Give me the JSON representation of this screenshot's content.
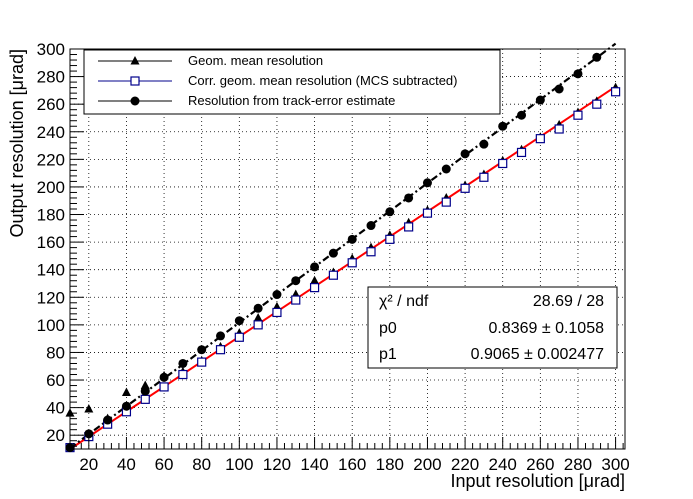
{
  "chart_data": {
    "type": "scatter",
    "xlabel": "Input resolution [μrad]",
    "ylabel": "Output resolution [μrad]",
    "xlim": [
      10,
      305
    ],
    "ylim": [
      10,
      300
    ],
    "xticks": [
      20,
      40,
      60,
      80,
      100,
      120,
      140,
      160,
      180,
      200,
      220,
      240,
      260,
      280,
      300
    ],
    "yticks": [
      20,
      40,
      60,
      80,
      100,
      120,
      140,
      160,
      180,
      200,
      220,
      240,
      260,
      280,
      300
    ],
    "grid": true,
    "series": [
      {
        "name": "Geom. mean resolution",
        "marker": "triangle",
        "color": "#000000",
        "x": [
          10,
          20,
          30,
          40,
          50,
          60,
          70,
          80,
          90,
          100,
          110,
          120,
          130,
          140,
          150,
          160,
          170,
          180,
          190,
          200,
          210,
          220,
          230,
          240,
          250,
          260,
          270,
          280,
          290,
          300
        ],
        "y": [
          36,
          39,
          32,
          51,
          56,
          63,
          66,
          74,
          84,
          94,
          105,
          113,
          122,
          132,
          138,
          148,
          156,
          165,
          174,
          183,
          192,
          201,
          209,
          219,
          227,
          236,
          245,
          254,
          262,
          272
        ]
      },
      {
        "name": "Corr. geom. mean resolution (MCS subtracted)",
        "marker": "open-square",
        "color": "#00008b",
        "x": [
          10,
          20,
          30,
          40,
          50,
          60,
          70,
          80,
          90,
          100,
          110,
          120,
          130,
          140,
          150,
          160,
          170,
          180,
          190,
          200,
          210,
          220,
          230,
          240,
          250,
          260,
          270,
          280,
          290,
          300
        ],
        "y": [
          11,
          19,
          28,
          37,
          46,
          55,
          64,
          73,
          82,
          91,
          100,
          109,
          118,
          127,
          136,
          145,
          153,
          162,
          171,
          181,
          189,
          199,
          207,
          217,
          225,
          235,
          242,
          252,
          260,
          269
        ]
      },
      {
        "name": "Resolution from track-error estimate",
        "marker": "filled-circle",
        "color": "#000000",
        "x": [
          10,
          20,
          30,
          40,
          50,
          60,
          70,
          80,
          90,
          100,
          110,
          120,
          130,
          140,
          150,
          160,
          170,
          180,
          190,
          200,
          210,
          220,
          230,
          240,
          250,
          260,
          270,
          280,
          290
        ],
        "y": [
          11,
          21,
          31,
          41,
          52,
          62,
          72,
          82,
          92,
          103,
          112,
          122,
          132,
          142,
          152,
          162,
          172,
          182,
          192,
          203,
          213,
          224,
          231,
          244,
          252,
          263,
          271,
          282,
          294
        ]
      }
    ],
    "fits": [
      {
        "name": "linear-fit",
        "p0": 0.8369,
        "p1": 0.9065,
        "color": "#ff0000",
        "style": "solid",
        "x_range": [
          10,
          300
        ]
      },
      {
        "name": "track-error-trend",
        "p0": 0.5,
        "p1": 1.0112,
        "color": "#000000",
        "style": "dash-dot",
        "x_range": [
          10,
          300
        ]
      }
    ],
    "legend_position": "top-left",
    "stats_box": {
      "position": "bottom-right",
      "rows": [
        {
          "label": "χ² / ndf",
          "value": "28.69 / 28"
        },
        {
          "label": "p0",
          "value": "0.8369 ± 0.1058"
        },
        {
          "label": "p1",
          "value": "0.9065 ± 0.002477"
        }
      ]
    }
  }
}
